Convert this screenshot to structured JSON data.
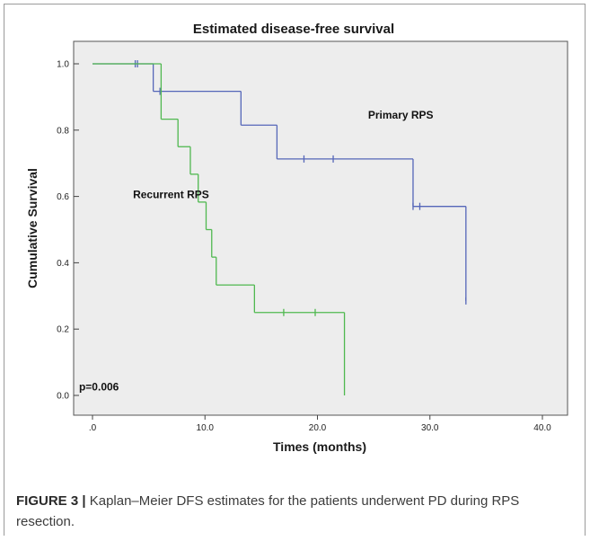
{
  "chart_data": {
    "type": "line",
    "subtype": "kaplan-meier step",
    "title": "Estimated disease-free survival",
    "xlabel": "Times (months)",
    "ylabel": "Cumulative Survival",
    "xlim": [
      0,
      40
    ],
    "ylim": [
      0,
      1
    ],
    "x_ticks": [
      0,
      10,
      20,
      30,
      40
    ],
    "x_tick_labels": [
      ".0",
      "10.0",
      "20.0",
      "30.0",
      "40.0"
    ],
    "y_ticks": [
      0,
      0.2,
      0.4,
      0.6,
      0.8,
      1.0
    ],
    "y_tick_labels": [
      "0.0",
      "0.2",
      "0.4",
      "0.6",
      "0.8",
      "1.0"
    ],
    "grid": false,
    "background": "#ededed",
    "series": [
      {
        "name": "Primary RPS",
        "color": "#5566b8",
        "steps": [
          [
            0,
            1.0
          ],
          [
            5.4,
            0.917
          ],
          [
            13.2,
            0.815
          ],
          [
            16.4,
            0.713
          ],
          [
            28.5,
            0.57
          ],
          [
            33.2,
            0.285
          ]
        ],
        "end_x": 33.2,
        "censored": [
          [
            3.8,
            1.0
          ],
          [
            4.0,
            1.0
          ],
          [
            6.0,
            0.917
          ],
          [
            18.8,
            0.713
          ],
          [
            21.4,
            0.713
          ],
          [
            28.5,
            0.57
          ],
          [
            29.1,
            0.57
          ],
          [
            33.2,
            0.285
          ]
        ]
      },
      {
        "name": "Recurrent RPS",
        "color": "#4fb84f",
        "steps": [
          [
            0,
            1.0
          ],
          [
            6.1,
            0.833
          ],
          [
            7.6,
            0.75
          ],
          [
            8.7,
            0.667
          ],
          [
            9.4,
            0.583
          ],
          [
            10.1,
            0.5
          ],
          [
            10.6,
            0.417
          ],
          [
            11.0,
            0.333
          ],
          [
            14.4,
            0.25
          ],
          [
            22.4,
            0.0
          ]
        ],
        "end_x": 22.4,
        "censored": [
          [
            17.0,
            0.25
          ],
          [
            19.8,
            0.25
          ]
        ]
      }
    ],
    "annotations": [
      {
        "text": "Primary RPS",
        "x": 24.5,
        "y": 0.835
      },
      {
        "text": "Recurrent RPS",
        "x": 3.6,
        "y": 0.595
      },
      {
        "text": "p=0.006",
        "x": -1.2,
        "y": 0.015
      }
    ]
  },
  "caption": {
    "label": "FIGURE 3",
    "separator": "|",
    "text": " Kaplan–Meier DFS estimates for the patients underwent PD during RPS resection."
  }
}
